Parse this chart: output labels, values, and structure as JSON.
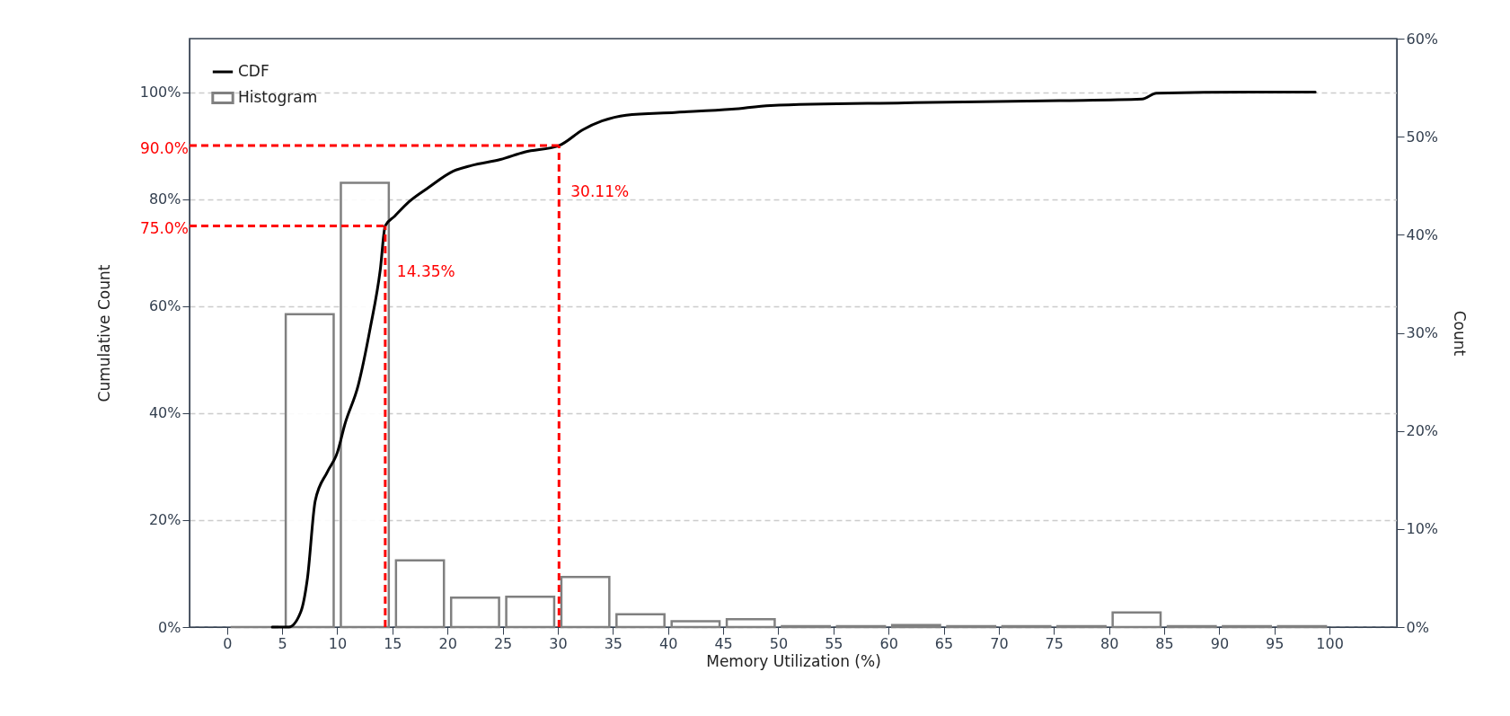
{
  "chart_data": {
    "type": "histogram",
    "xlabel": "Memory Utilization (%)",
    "ylabel": "Cumulative Count",
    "y2label": "Count",
    "bins": [
      0,
      5,
      10,
      15,
      20,
      25,
      30,
      35,
      40,
      45,
      50,
      55,
      60,
      65,
      70,
      75,
      80,
      85,
      90,
      95,
      100
    ],
    "series": [
      {
        "name": "CDF",
        "type": "line",
        "color": "#000000",
        "x": [
          4.1,
          5.6,
          6.7,
          7.3,
          8.0,
          9.1,
          10.0,
          10.7,
          11.9,
          13.0,
          13.9,
          14.35,
          15.2,
          16.5,
          18.3,
          20.5,
          22.2,
          24.8,
          27.0,
          30.11,
          32.3,
          34.0,
          36.2,
          40.6,
          45.8,
          49.3,
          61.5,
          75.5,
          83.0,
          84.3,
          93,
          98.7
        ],
        "values": [
          0,
          0,
          2.9,
          9.2,
          23.6,
          29,
          32.6,
          38,
          45.2,
          56,
          66.8,
          75,
          76.8,
          79.5,
          82.2,
          85.2,
          86.3,
          87.4,
          88.8,
          90,
          93,
          94.6,
          95.7,
          96.2,
          96.8,
          97.5,
          98,
          98.4,
          98.7,
          99.8,
          100,
          100
        ]
      },
      {
        "name": "Histogram",
        "color": "#808080",
        "axis": "y2",
        "values": [
          0,
          31.9,
          45.3,
          6.8,
          3.0,
          3.1,
          5.1,
          1.3,
          0.6,
          0.8,
          0.1,
          0.1,
          0.2,
          0.1,
          0.1,
          0.1,
          1.5,
          0.1,
          0.1,
          0.1
        ]
      }
    ],
    "xlim": [
      -3.4,
      106.1
    ],
    "xticks": [
      0,
      5,
      10,
      15,
      20,
      25,
      30,
      35,
      40,
      45,
      50,
      55,
      60,
      65,
      70,
      75,
      80,
      85,
      90,
      95,
      100
    ],
    "ylim": [
      0,
      110
    ],
    "yticks": [
      {
        "value": 0,
        "label": "0%"
      },
      {
        "value": 20,
        "label": "20%"
      },
      {
        "value": 40,
        "label": "40%"
      },
      {
        "value": 60,
        "label": "60%"
      },
      {
        "value": 80,
        "label": "80%"
      },
      {
        "value": 100,
        "label": "100%"
      }
    ],
    "y2lim": [
      0,
      60
    ],
    "y2ticks": [
      {
        "value": 0,
        "label": "0%"
      },
      {
        "value": 10,
        "label": "10%"
      },
      {
        "value": 20,
        "label": "20%"
      },
      {
        "value": 30,
        "label": "30%"
      },
      {
        "value": 40,
        "label": "40%"
      },
      {
        "value": 50,
        "label": "50%"
      },
      {
        "value": 60,
        "label": "60%"
      }
    ],
    "ref_lines": [
      {
        "axis": "y",
        "value": 90,
        "label": "90.0%",
        "color": "#ff0000",
        "line_style": "dashed"
      },
      {
        "axis": "y",
        "value": 75,
        "label": "75.0%",
        "color": "#ff0000",
        "line_style": "dashed"
      },
      {
        "axis": "x",
        "value": 30.11,
        "label": "30.11%",
        "color": "#ff0000",
        "line_style": "dashed"
      },
      {
        "axis": "x",
        "value": 14.35,
        "label": "14.35%",
        "color": "#ff0000",
        "line_style": "dashed"
      }
    ],
    "grid": "y",
    "legend": "top left"
  }
}
